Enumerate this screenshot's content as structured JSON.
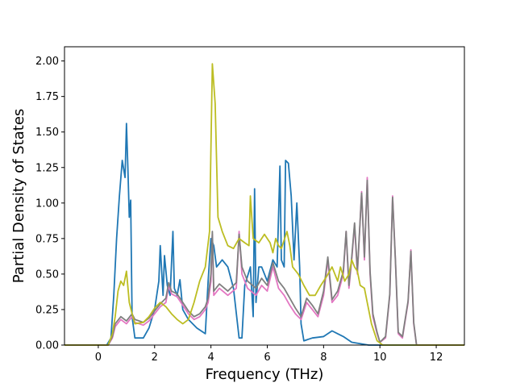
{
  "chart_data": {
    "type": "line",
    "title": "",
    "xlabel": "Frequency (THz)",
    "ylabel": "Partial Density of States",
    "xlim": [
      -1.2,
      13.0
    ],
    "ylim": [
      0.0,
      2.1
    ],
    "grid": false,
    "legend": "none",
    "x_ticks": [
      0,
      2,
      4,
      6,
      8,
      10,
      12
    ],
    "x_tick_labels": [
      "0",
      "2",
      "4",
      "6",
      "8",
      "10",
      "12"
    ],
    "y_ticks": [
      0.0,
      0.25,
      0.5,
      0.75,
      1.0,
      1.25,
      1.5,
      1.75,
      2.0
    ],
    "y_tick_labels": [
      "0.00",
      "0.25",
      "0.50",
      "0.75",
      "1.00",
      "1.25",
      "1.50",
      "1.75",
      "2.00"
    ],
    "series": [
      {
        "color": "#1f77b4",
        "points": [
          [
            -1.2,
            0
          ],
          [
            0.3,
            0
          ],
          [
            0.45,
            0.05
          ],
          [
            0.55,
            0.35
          ],
          [
            0.65,
            0.75
          ],
          [
            0.75,
            1.05
          ],
          [
            0.85,
            1.3
          ],
          [
            0.95,
            1.18
          ],
          [
            1.0,
            1.56
          ],
          [
            1.05,
            1.25
          ],
          [
            1.1,
            0.9
          ],
          [
            1.15,
            1.02
          ],
          [
            1.2,
            0.2
          ],
          [
            1.3,
            0.05
          ],
          [
            1.6,
            0.05
          ],
          [
            1.8,
            0.12
          ],
          [
            2.0,
            0.25
          ],
          [
            2.15,
            0.45
          ],
          [
            2.2,
            0.7
          ],
          [
            2.3,
            0.35
          ],
          [
            2.35,
            0.63
          ],
          [
            2.45,
            0.42
          ],
          [
            2.55,
            0.35
          ],
          [
            2.65,
            0.8
          ],
          [
            2.7,
            0.4
          ],
          [
            2.8,
            0.35
          ],
          [
            2.9,
            0.46
          ],
          [
            3.0,
            0.25
          ],
          [
            3.2,
            0.18
          ],
          [
            3.5,
            0.12
          ],
          [
            3.8,
            0.08
          ],
          [
            3.9,
            0.45
          ],
          [
            4.0,
            0.75
          ],
          [
            4.1,
            0.7
          ],
          [
            4.2,
            0.55
          ],
          [
            4.4,
            0.6
          ],
          [
            4.6,
            0.55
          ],
          [
            4.8,
            0.4
          ],
          [
            5.0,
            0.05
          ],
          [
            5.1,
            0.05
          ],
          [
            5.2,
            0.42
          ],
          [
            5.4,
            0.55
          ],
          [
            5.5,
            0.2
          ],
          [
            5.55,
            1.1
          ],
          [
            5.6,
            0.3
          ],
          [
            5.7,
            0.55
          ],
          [
            5.8,
            0.55
          ],
          [
            6.0,
            0.45
          ],
          [
            6.2,
            0.6
          ],
          [
            6.35,
            0.55
          ],
          [
            6.45,
            1.26
          ],
          [
            6.5,
            0.6
          ],
          [
            6.6,
            0.55
          ],
          [
            6.65,
            1.3
          ],
          [
            6.75,
            1.28
          ],
          [
            6.85,
            1.05
          ],
          [
            6.95,
            0.6
          ],
          [
            7.05,
            1.0
          ],
          [
            7.15,
            0.55
          ],
          [
            7.2,
            0.15
          ],
          [
            7.3,
            0.03
          ],
          [
            7.6,
            0.05
          ],
          [
            8.0,
            0.06
          ],
          [
            8.3,
            0.1
          ],
          [
            8.5,
            0.08
          ],
          [
            8.7,
            0.06
          ],
          [
            9.0,
            0.02
          ],
          [
            9.3,
            0.01
          ],
          [
            9.6,
            0.0
          ],
          [
            13.0,
            0
          ]
        ]
      },
      {
        "color": "#e377c2",
        "points": [
          [
            -1.2,
            0
          ],
          [
            0.35,
            0
          ],
          [
            0.5,
            0.05
          ],
          [
            0.6,
            0.13
          ],
          [
            0.8,
            0.18
          ],
          [
            1.0,
            0.15
          ],
          [
            1.2,
            0.2
          ],
          [
            1.3,
            0.16
          ],
          [
            1.6,
            0.14
          ],
          [
            1.8,
            0.17
          ],
          [
            2.0,
            0.22
          ],
          [
            2.2,
            0.27
          ],
          [
            2.4,
            0.3
          ],
          [
            2.5,
            0.42
          ],
          [
            2.6,
            0.36
          ],
          [
            2.8,
            0.34
          ],
          [
            3.0,
            0.28
          ],
          [
            3.2,
            0.22
          ],
          [
            3.4,
            0.18
          ],
          [
            3.6,
            0.2
          ],
          [
            3.8,
            0.25
          ],
          [
            3.9,
            0.3
          ],
          [
            4.0,
            0.45
          ],
          [
            4.05,
            0.78
          ],
          [
            4.1,
            0.35
          ],
          [
            4.3,
            0.4
          ],
          [
            4.6,
            0.35
          ],
          [
            4.9,
            0.4
          ],
          [
            5.0,
            0.8
          ],
          [
            5.1,
            0.5
          ],
          [
            5.3,
            0.4
          ],
          [
            5.6,
            0.35
          ],
          [
            5.8,
            0.42
          ],
          [
            6.0,
            0.38
          ],
          [
            6.2,
            0.55
          ],
          [
            6.4,
            0.4
          ],
          [
            6.6,
            0.35
          ],
          [
            6.8,
            0.28
          ],
          [
            7.0,
            0.22
          ],
          [
            7.2,
            0.18
          ],
          [
            7.4,
            0.3
          ],
          [
            7.6,
            0.25
          ],
          [
            7.8,
            0.2
          ],
          [
            8.0,
            0.35
          ],
          [
            8.15,
            0.6
          ],
          [
            8.3,
            0.3
          ],
          [
            8.5,
            0.35
          ],
          [
            8.7,
            0.5
          ],
          [
            8.8,
            0.8
          ],
          [
            8.9,
            0.4
          ],
          [
            9.0,
            0.6
          ],
          [
            9.1,
            0.85
          ],
          [
            9.2,
            0.5
          ],
          [
            9.35,
            1.08
          ],
          [
            9.45,
            0.6
          ],
          [
            9.55,
            1.18
          ],
          [
            9.65,
            0.5
          ],
          [
            9.75,
            0.2
          ],
          [
            9.9,
            0.08
          ],
          [
            10.0,
            0.02
          ],
          [
            10.2,
            0.05
          ],
          [
            10.35,
            0.35
          ],
          [
            10.45,
            1.05
          ],
          [
            10.55,
            0.6
          ],
          [
            10.65,
            0.08
          ],
          [
            10.8,
            0.05
          ],
          [
            11.0,
            0.3
          ],
          [
            11.1,
            0.67
          ],
          [
            11.2,
            0.15
          ],
          [
            11.3,
            0.0
          ],
          [
            13.0,
            0
          ]
        ]
      },
      {
        "color": "#7f7f7f",
        "points": [
          [
            -1.2,
            0
          ],
          [
            0.35,
            0
          ],
          [
            0.5,
            0.06
          ],
          [
            0.6,
            0.15
          ],
          [
            0.8,
            0.2
          ],
          [
            1.0,
            0.17
          ],
          [
            1.2,
            0.22
          ],
          [
            1.3,
            0.18
          ],
          [
            1.6,
            0.16
          ],
          [
            1.8,
            0.19
          ],
          [
            2.0,
            0.24
          ],
          [
            2.2,
            0.29
          ],
          [
            2.4,
            0.33
          ],
          [
            2.5,
            0.44
          ],
          [
            2.6,
            0.38
          ],
          [
            2.8,
            0.36
          ],
          [
            3.0,
            0.3
          ],
          [
            3.2,
            0.24
          ],
          [
            3.4,
            0.2
          ],
          [
            3.6,
            0.22
          ],
          [
            3.8,
            0.27
          ],
          [
            3.9,
            0.33
          ],
          [
            4.0,
            0.5
          ],
          [
            4.05,
            0.8
          ],
          [
            4.1,
            0.38
          ],
          [
            4.3,
            0.43
          ],
          [
            4.6,
            0.38
          ],
          [
            4.9,
            0.44
          ],
          [
            5.0,
            0.78
          ],
          [
            5.1,
            0.55
          ],
          [
            5.3,
            0.45
          ],
          [
            5.6,
            0.4
          ],
          [
            5.8,
            0.47
          ],
          [
            6.0,
            0.42
          ],
          [
            6.2,
            0.58
          ],
          [
            6.4,
            0.45
          ],
          [
            6.6,
            0.4
          ],
          [
            6.8,
            0.33
          ],
          [
            7.0,
            0.26
          ],
          [
            7.2,
            0.2
          ],
          [
            7.4,
            0.33
          ],
          [
            7.6,
            0.28
          ],
          [
            7.8,
            0.22
          ],
          [
            8.0,
            0.38
          ],
          [
            8.15,
            0.62
          ],
          [
            8.3,
            0.32
          ],
          [
            8.5,
            0.38
          ],
          [
            8.7,
            0.52
          ],
          [
            8.8,
            0.8
          ],
          [
            8.9,
            0.42
          ],
          [
            9.0,
            0.62
          ],
          [
            9.1,
            0.86
          ],
          [
            9.2,
            0.52
          ],
          [
            9.35,
            1.07
          ],
          [
            9.45,
            0.62
          ],
          [
            9.55,
            1.16
          ],
          [
            9.65,
            0.52
          ],
          [
            9.75,
            0.22
          ],
          [
            9.9,
            0.09
          ],
          [
            10.0,
            0.02
          ],
          [
            10.2,
            0.06
          ],
          [
            10.35,
            0.36
          ],
          [
            10.45,
            1.04
          ],
          [
            10.55,
            0.6
          ],
          [
            10.65,
            0.09
          ],
          [
            10.8,
            0.06
          ],
          [
            11.0,
            0.31
          ],
          [
            11.1,
            0.66
          ],
          [
            11.2,
            0.16
          ],
          [
            11.3,
            0.0
          ],
          [
            13.0,
            0
          ]
        ]
      },
      {
        "color": "#bcbd22",
        "points": [
          [
            -1.2,
            0
          ],
          [
            0.35,
            0
          ],
          [
            0.5,
            0.08
          ],
          [
            0.6,
            0.2
          ],
          [
            0.7,
            0.38
          ],
          [
            0.8,
            0.45
          ],
          [
            0.9,
            0.42
          ],
          [
            1.0,
            0.52
          ],
          [
            1.1,
            0.3
          ],
          [
            1.2,
            0.22
          ],
          [
            1.3,
            0.15
          ],
          [
            1.6,
            0.16
          ],
          [
            1.8,
            0.2
          ],
          [
            2.0,
            0.26
          ],
          [
            2.2,
            0.3
          ],
          [
            2.4,
            0.27
          ],
          [
            2.6,
            0.22
          ],
          [
            2.8,
            0.18
          ],
          [
            3.0,
            0.15
          ],
          [
            3.2,
            0.18
          ],
          [
            3.4,
            0.3
          ],
          [
            3.6,
            0.45
          ],
          [
            3.8,
            0.55
          ],
          [
            3.95,
            0.8
          ],
          [
            4.05,
            1.98
          ],
          [
            4.15,
            1.7
          ],
          [
            4.25,
            0.9
          ],
          [
            4.4,
            0.8
          ],
          [
            4.6,
            0.7
          ],
          [
            4.8,
            0.68
          ],
          [
            5.0,
            0.75
          ],
          [
            5.2,
            0.72
          ],
          [
            5.35,
            0.7
          ],
          [
            5.4,
            1.05
          ],
          [
            5.5,
            0.75
          ],
          [
            5.7,
            0.72
          ],
          [
            5.9,
            0.78
          ],
          [
            6.1,
            0.72
          ],
          [
            6.2,
            0.65
          ],
          [
            6.3,
            0.75
          ],
          [
            6.4,
            0.7
          ],
          [
            6.5,
            0.68
          ],
          [
            6.6,
            0.74
          ],
          [
            6.7,
            0.8
          ],
          [
            6.8,
            0.7
          ],
          [
            6.9,
            0.55
          ],
          [
            7.1,
            0.5
          ],
          [
            7.3,
            0.42
          ],
          [
            7.5,
            0.35
          ],
          [
            7.7,
            0.35
          ],
          [
            7.9,
            0.42
          ],
          [
            8.1,
            0.48
          ],
          [
            8.3,
            0.55
          ],
          [
            8.5,
            0.45
          ],
          [
            8.6,
            0.55
          ],
          [
            8.75,
            0.45
          ],
          [
            8.9,
            0.5
          ],
          [
            9.0,
            0.6
          ],
          [
            9.1,
            0.55
          ],
          [
            9.2,
            0.52
          ],
          [
            9.3,
            0.42
          ],
          [
            9.45,
            0.4
          ],
          [
            9.55,
            0.3
          ],
          [
            9.7,
            0.15
          ],
          [
            9.9,
            0.03
          ],
          [
            10.1,
            0.0
          ],
          [
            13.0,
            0
          ]
        ]
      }
    ]
  }
}
